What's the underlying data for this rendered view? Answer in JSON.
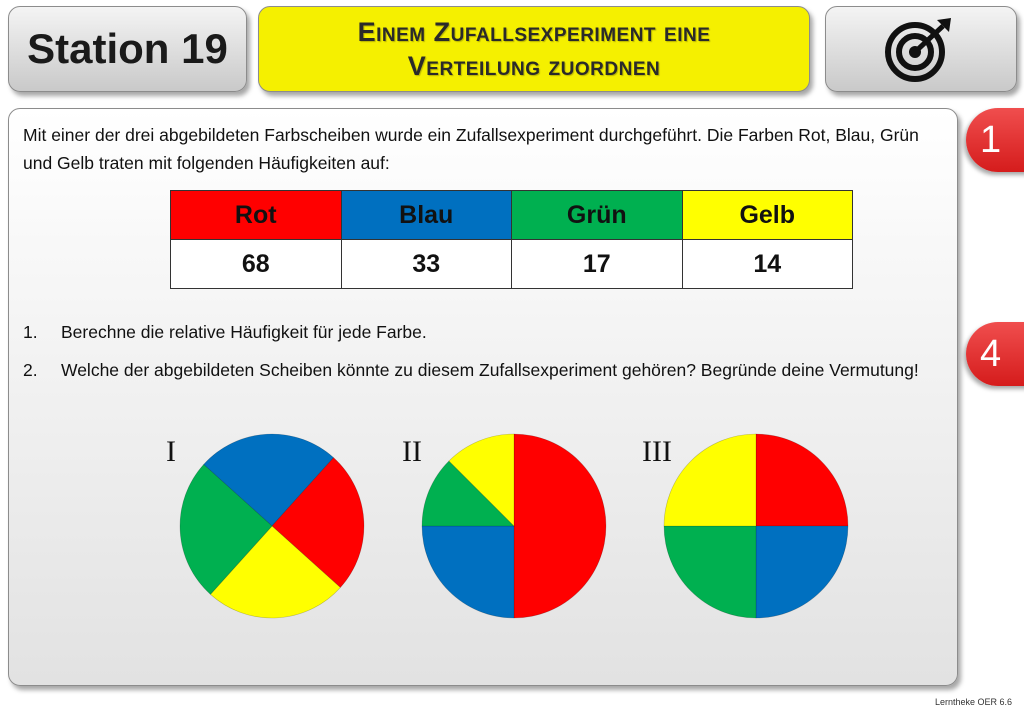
{
  "header": {
    "station": "Station 19",
    "title_line1": "Einem Zufallsexperiment eine",
    "title_line2": "Verteilung zuordnen",
    "icon": "target-icon"
  },
  "intro": "Mit einer der drei abgebildeten Farbscheiben wurde ein Zufallsexperiment durchgeführt. Die Farben Rot, Blau, Grün und Gelb traten mit folgenden Häufigkeiten auf:",
  "table": {
    "headers": [
      "Rot",
      "Blau",
      "Grün",
      "Gelb"
    ],
    "values": [
      "68",
      "33",
      "17",
      "14"
    ],
    "header_colors": [
      "#ff0000",
      "#0070c0",
      "#00b050",
      "#ffff00"
    ]
  },
  "tasks": [
    {
      "num": "1.",
      "text": "Berechne die relative Häufigkeit für jede Farbe."
    },
    {
      "num": "2.",
      "text": "Welche der abgebildeten Scheiben könnte zu diesem Zufallsexperiment gehören? Begründe deine Vermutung!"
    }
  ],
  "disks": [
    {
      "label": "I",
      "segments": [
        {
          "color": "#0070c0",
          "share": 0.25
        },
        {
          "color": "#ff0000",
          "share": 0.25
        },
        {
          "color": "#ffff00",
          "share": 0.25
        },
        {
          "color": "#00b050",
          "share": 0.25
        }
      ]
    },
    {
      "label": "II",
      "segments": [
        {
          "color": "#ff0000",
          "share": 0.5
        },
        {
          "color": "#0070c0",
          "share": 0.25
        },
        {
          "color": "#00b050",
          "share": 0.125
        },
        {
          "color": "#ffff00",
          "share": 0.125
        }
      ]
    },
    {
      "label": "III",
      "segments": [
        {
          "color": "#ff0000",
          "share": 0.25
        },
        {
          "color": "#0070c0",
          "share": 0.25
        },
        {
          "color": "#00b050",
          "share": 0.25
        },
        {
          "color": "#ffff00",
          "share": 0.25
        }
      ]
    }
  ],
  "badges": [
    "1",
    "4"
  ],
  "footer": "Lerntheke OER 6.6"
}
